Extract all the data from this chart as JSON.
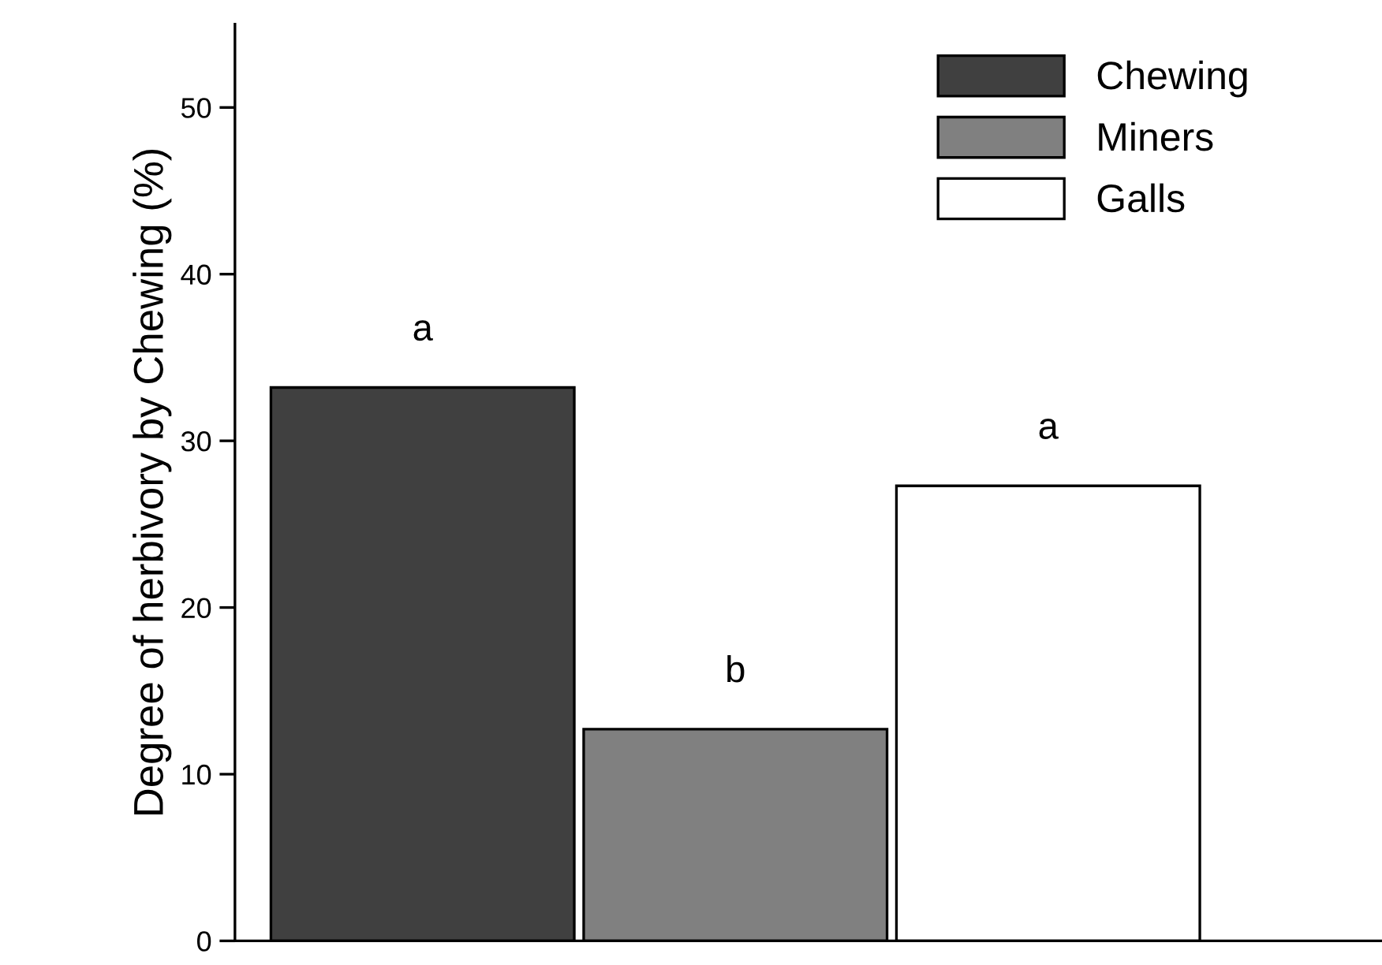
{
  "chart_data": {
    "type": "bar",
    "ylabel": "Degree of herbivory by Chewing (%)",
    "categories": [
      null,
      null,
      null
    ],
    "series": [
      {
        "name": "Chewing",
        "color": "#404040",
        "values": [
          33.2,
          null,
          null
        ]
      },
      {
        "name": "Miners",
        "color": "#808080",
        "values": [
          null,
          12.7,
          null
        ]
      },
      {
        "name": "Galls",
        "color": "#ffffff",
        "values": [
          null,
          null,
          27.3
        ]
      }
    ],
    "annotations": [
      {
        "text": "a",
        "y": 33.2
      },
      {
        "text": "b",
        "y": 12.7
      },
      {
        "text": "a",
        "y": 27.3
      }
    ],
    "ylim": [
      0,
      55
    ],
    "yticks": [
      0,
      10,
      20,
      30,
      40,
      50
    ],
    "grid": false,
    "legend": "top right",
    "tick_labels": "y"
  }
}
